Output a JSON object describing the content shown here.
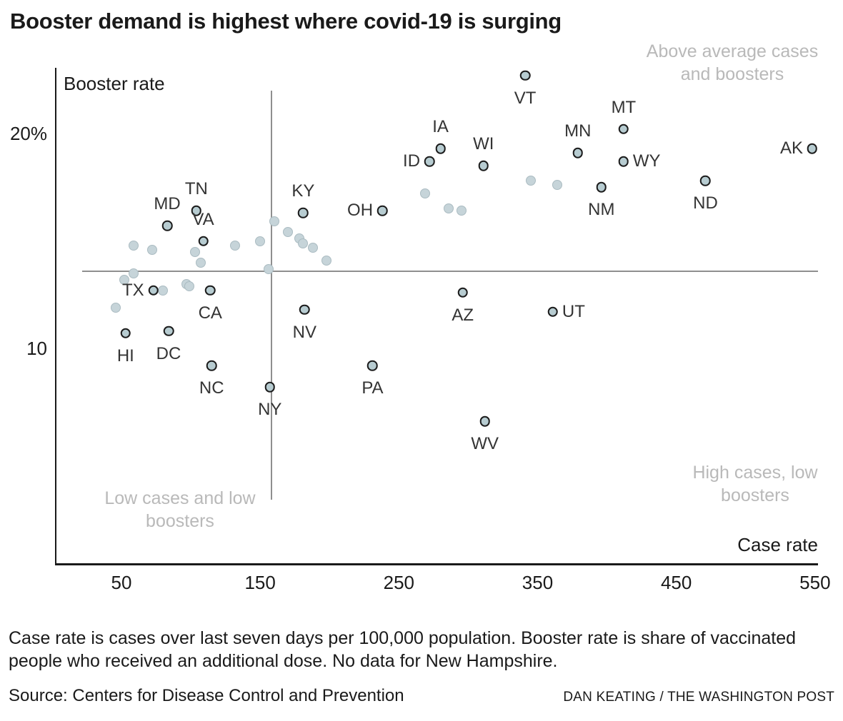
{
  "title": "Booster demand is highest where covid-19 is surging",
  "colors": {
    "axis": "#1a1a1a",
    "mean_line": "#8f8f8f",
    "quadrant_text": "#b9b9b9",
    "labeled_dot_fill": "#b7ccd1",
    "labeled_dot_stroke": "#1c1c1c",
    "plain_dot_fill": "#c6d4d9",
    "state_label_text": "#343434"
  },
  "quadrants": {
    "top_right": {
      "line1": "Above average cases",
      "line2": "and boosters"
    },
    "bottom_left": {
      "line1": "Low cases and low",
      "line2": "boosters"
    },
    "bottom_right": {
      "line1": "High cases, low",
      "line2": "boosters"
    }
  },
  "chart_data": {
    "type": "scatter",
    "xlabel": "Case rate",
    "ylabel": "Booster rate",
    "x_axis": {
      "ticks": [
        50,
        150,
        250,
        350,
        450,
        550
      ]
    },
    "y_axis": {
      "ticks": [
        {
          "value": 20,
          "label": "20%"
        },
        {
          "value": 10,
          "label": "10"
        }
      ]
    },
    "mean_lines": {
      "x": 158,
      "y": 13.6
    },
    "series": [
      {
        "name": "labeled_states",
        "points": [
          {
            "state": "VT",
            "x": 341,
            "y": 22.7,
            "label_pos": "below"
          },
          {
            "state": "MT",
            "x": 412,
            "y": 20.2,
            "label_pos": "above"
          },
          {
            "state": "IA",
            "x": 280,
            "y": 19.3,
            "label_pos": "above"
          },
          {
            "state": "AK",
            "x": 548,
            "y": 19.3,
            "label_pos": "left"
          },
          {
            "state": "MN",
            "x": 379,
            "y": 19.1,
            "label_pos": "above"
          },
          {
            "state": "ID",
            "x": 272,
            "y": 18.7,
            "label_pos": "left"
          },
          {
            "state": "WY",
            "x": 412,
            "y": 18.7,
            "label_pos": "right"
          },
          {
            "state": "WI",
            "x": 311,
            "y": 18.5,
            "label_pos": "above"
          },
          {
            "state": "ND",
            "x": 471,
            "y": 17.8,
            "label_pos": "below"
          },
          {
            "state": "NM",
            "x": 396,
            "y": 17.5,
            "label_pos": "below"
          },
          {
            "state": "OH",
            "x": 238,
            "y": 16.4,
            "label_pos": "left"
          },
          {
            "state": "TN",
            "x": 104,
            "y": 16.4,
            "label_pos": "above"
          },
          {
            "state": "KY",
            "x": 181,
            "y": 16.3,
            "label_pos": "above"
          },
          {
            "state": "MD",
            "x": 83,
            "y": 15.7,
            "label_pos": "above"
          },
          {
            "state": "VA",
            "x": 109,
            "y": 15.0,
            "label_pos": "above"
          },
          {
            "state": "TX",
            "x": 73,
            "y": 12.7,
            "label_pos": "left"
          },
          {
            "state": "CA",
            "x": 114,
            "y": 12.7,
            "label_pos": "below"
          },
          {
            "state": "AZ",
            "x": 296,
            "y": 12.6,
            "label_pos": "below"
          },
          {
            "state": "NV",
            "x": 182,
            "y": 11.8,
            "label_pos": "below"
          },
          {
            "state": "UT",
            "x": 361,
            "y": 11.7,
            "label_pos": "right"
          },
          {
            "state": "DC",
            "x": 84,
            "y": 10.8,
            "label_pos": "below"
          },
          {
            "state": "HI",
            "x": 53,
            "y": 10.7,
            "label_pos": "below"
          },
          {
            "state": "NC",
            "x": 115,
            "y": 9.2,
            "label_pos": "below"
          },
          {
            "state": "PA",
            "x": 231,
            "y": 9.2,
            "label_pos": "below"
          },
          {
            "state": "NY",
            "x": 157,
            "y": 8.2,
            "label_pos": "below"
          },
          {
            "state": "WV",
            "x": 312,
            "y": 6.6,
            "label_pos": "below"
          }
        ]
      },
      {
        "name": "unlabeled_states",
        "points": [
          {
            "x": 345,
            "y": 17.8
          },
          {
            "x": 364,
            "y": 17.6
          },
          {
            "x": 269,
            "y": 17.2
          },
          {
            "x": 286,
            "y": 16.5
          },
          {
            "x": 295,
            "y": 16.4
          },
          {
            "x": 160,
            "y": 15.9
          },
          {
            "x": 170,
            "y": 15.4
          },
          {
            "x": 178,
            "y": 15.1
          },
          {
            "x": 181,
            "y": 14.9
          },
          {
            "x": 188,
            "y": 14.7
          },
          {
            "x": 198,
            "y": 14.1
          },
          {
            "x": 59,
            "y": 14.8
          },
          {
            "x": 72,
            "y": 14.6
          },
          {
            "x": 103,
            "y": 14.5
          },
          {
            "x": 107,
            "y": 14.0
          },
          {
            "x": 132,
            "y": 14.8
          },
          {
            "x": 150,
            "y": 15.0
          },
          {
            "x": 156,
            "y": 13.7
          },
          {
            "x": 59,
            "y": 13.5
          },
          {
            "x": 52,
            "y": 13.2
          },
          {
            "x": 97,
            "y": 13.0
          },
          {
            "x": 99,
            "y": 12.9
          },
          {
            "x": 80,
            "y": 12.7
          },
          {
            "x": 46,
            "y": 11.9
          }
        ]
      }
    ]
  },
  "footer": {
    "note": "Case rate is cases over last seven days per 100,000 population. Booster rate is share of vaccinated people who received an additional dose. No data for New Hampshire.",
    "source": "Source: Centers for Disease Control and Prevention",
    "credit": "DAN KEATING / THE WASHINGTON POST"
  }
}
